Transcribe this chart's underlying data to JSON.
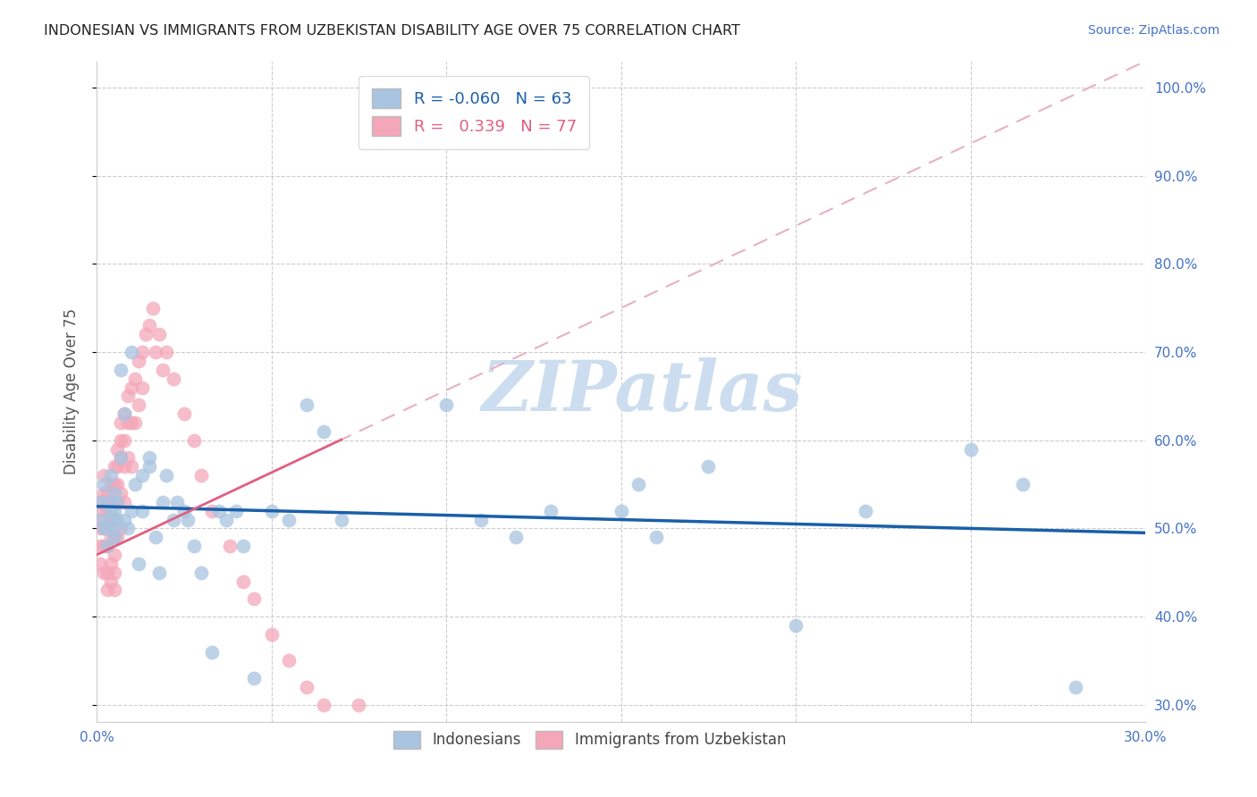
{
  "title": "INDONESIAN VS IMMIGRANTS FROM UZBEKISTAN DISABILITY AGE OVER 75 CORRELATION CHART",
  "source": "Source: ZipAtlas.com",
  "ylabel": "Disability Age Over 75",
  "xlim": [
    0.0,
    0.3
  ],
  "ylim": [
    0.28,
    1.03
  ],
  "xticks": [
    0.0,
    0.05,
    0.1,
    0.15,
    0.2,
    0.25,
    0.3
  ],
  "xticklabels": [
    "0.0%",
    "",
    "",
    "",
    "",
    "",
    "30.0%"
  ],
  "yticks_right": [
    0.3,
    0.4,
    0.5,
    0.6,
    0.7,
    0.8,
    0.9,
    1.0
  ],
  "yticklabels_right": [
    "30.0%",
    "40.0%",
    "50.0%",
    "60.0%",
    "70.0%",
    "80.0%",
    "90.0%",
    "100.0%"
  ],
  "blue_R": -0.06,
  "blue_N": 63,
  "pink_R": 0.339,
  "pink_N": 77,
  "blue_color": "#a8c4e0",
  "blue_edge_color": "#6699cc",
  "blue_line_color": "#1a5fa8",
  "pink_color": "#f4a7b9",
  "pink_edge_color": "#dd88aa",
  "pink_line_color": "#e06080",
  "pink_dash_color": "#e8b0c0",
  "watermark": "ZIPatlas",
  "watermark_color": "#ccddef",
  "legend_label_blue": "Indonesians",
  "legend_label_pink": "Immigrants from Uzbekistan",
  "blue_scatter_x": [
    0.001,
    0.001,
    0.002,
    0.002,
    0.003,
    0.003,
    0.003,
    0.004,
    0.004,
    0.004,
    0.005,
    0.005,
    0.005,
    0.005,
    0.006,
    0.006,
    0.007,
    0.007,
    0.008,
    0.008,
    0.009,
    0.01,
    0.01,
    0.011,
    0.012,
    0.013,
    0.013,
    0.015,
    0.015,
    0.017,
    0.018,
    0.019,
    0.02,
    0.022,
    0.023,
    0.025,
    0.026,
    0.028,
    0.03,
    0.033,
    0.035,
    0.037,
    0.04,
    0.042,
    0.045,
    0.05,
    0.055,
    0.06,
    0.065,
    0.07,
    0.1,
    0.11,
    0.12,
    0.13,
    0.15,
    0.155,
    0.16,
    0.175,
    0.2,
    0.22,
    0.25,
    0.265,
    0.28
  ],
  "blue_scatter_y": [
    0.53,
    0.51,
    0.55,
    0.5,
    0.5,
    0.53,
    0.48,
    0.51,
    0.56,
    0.52,
    0.5,
    0.54,
    0.52,
    0.49,
    0.51,
    0.53,
    0.68,
    0.58,
    0.51,
    0.63,
    0.5,
    0.52,
    0.7,
    0.55,
    0.46,
    0.52,
    0.56,
    0.58,
    0.57,
    0.49,
    0.45,
    0.53,
    0.56,
    0.51,
    0.53,
    0.52,
    0.51,
    0.48,
    0.45,
    0.36,
    0.52,
    0.51,
    0.52,
    0.48,
    0.33,
    0.52,
    0.51,
    0.64,
    0.61,
    0.51,
    0.64,
    0.51,
    0.49,
    0.52,
    0.52,
    0.55,
    0.49,
    0.57,
    0.39,
    0.52,
    0.59,
    0.55,
    0.32
  ],
  "pink_scatter_x": [
    0.001,
    0.001,
    0.001,
    0.001,
    0.001,
    0.002,
    0.002,
    0.002,
    0.002,
    0.002,
    0.002,
    0.003,
    0.003,
    0.003,
    0.003,
    0.003,
    0.003,
    0.004,
    0.004,
    0.004,
    0.004,
    0.004,
    0.004,
    0.005,
    0.005,
    0.005,
    0.005,
    0.005,
    0.005,
    0.005,
    0.005,
    0.006,
    0.006,
    0.006,
    0.006,
    0.006,
    0.007,
    0.007,
    0.007,
    0.007,
    0.007,
    0.008,
    0.008,
    0.008,
    0.008,
    0.009,
    0.009,
    0.009,
    0.01,
    0.01,
    0.01,
    0.011,
    0.011,
    0.012,
    0.012,
    0.013,
    0.013,
    0.014,
    0.015,
    0.016,
    0.017,
    0.018,
    0.019,
    0.02,
    0.022,
    0.025,
    0.028,
    0.03,
    0.033,
    0.038,
    0.042,
    0.045,
    0.05,
    0.055,
    0.06,
    0.065,
    0.075
  ],
  "pink_scatter_y": [
    0.53,
    0.51,
    0.5,
    0.48,
    0.46,
    0.56,
    0.54,
    0.52,
    0.5,
    0.48,
    0.45,
    0.54,
    0.52,
    0.5,
    0.48,
    0.45,
    0.43,
    0.55,
    0.53,
    0.51,
    0.49,
    0.46,
    0.44,
    0.57,
    0.55,
    0.53,
    0.51,
    0.49,
    0.47,
    0.45,
    0.43,
    0.59,
    0.57,
    0.55,
    0.53,
    0.49,
    0.62,
    0.6,
    0.58,
    0.54,
    0.5,
    0.63,
    0.6,
    0.57,
    0.53,
    0.65,
    0.62,
    0.58,
    0.66,
    0.62,
    0.57,
    0.67,
    0.62,
    0.69,
    0.64,
    0.7,
    0.66,
    0.72,
    0.73,
    0.75,
    0.7,
    0.72,
    0.68,
    0.7,
    0.67,
    0.63,
    0.6,
    0.56,
    0.52,
    0.48,
    0.44,
    0.42,
    0.38,
    0.35,
    0.32,
    0.3,
    0.3
  ],
  "blue_trend_x0": 0.0,
  "blue_trend_x1": 0.3,
  "blue_trend_y0": 0.525,
  "blue_trend_y1": 0.495,
  "pink_trend_x0": 0.0,
  "pink_trend_x1": 0.3,
  "pink_trend_y0": 0.47,
  "pink_trend_y1": 1.03
}
